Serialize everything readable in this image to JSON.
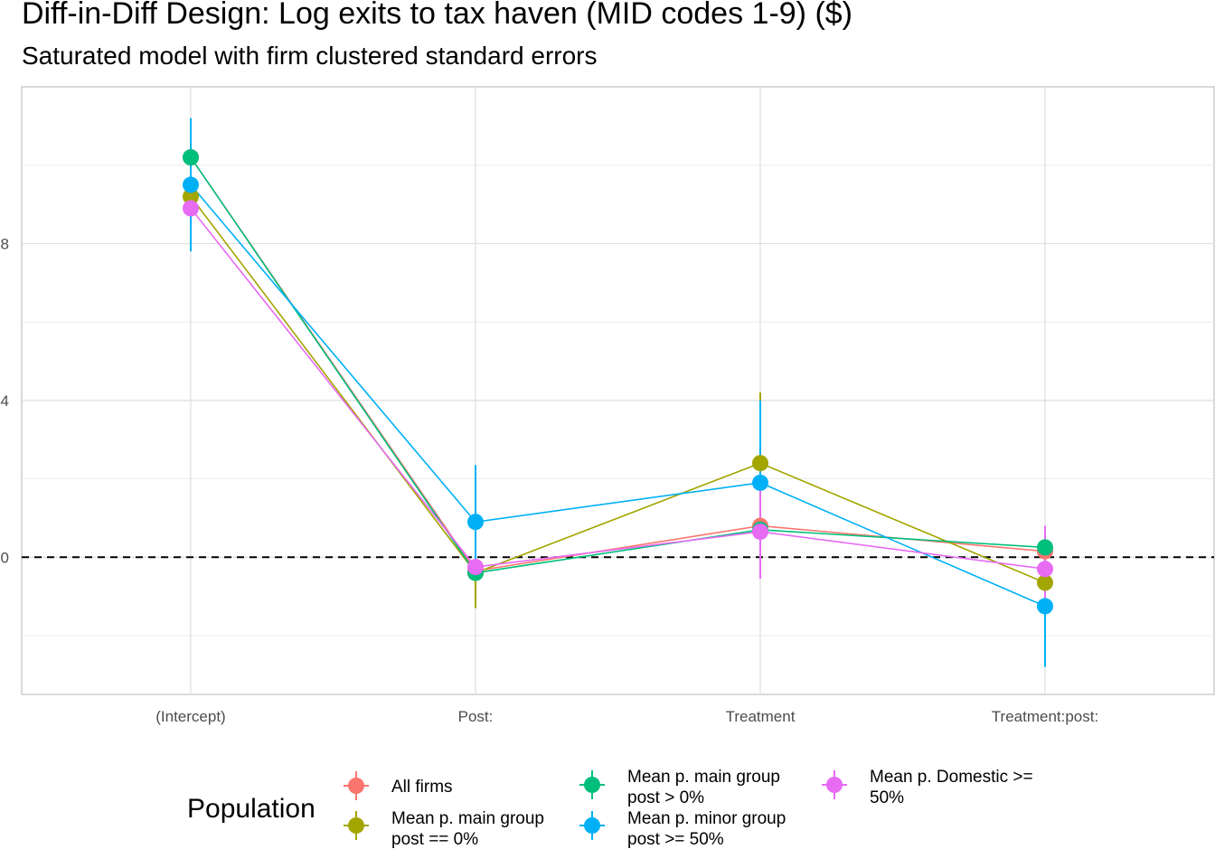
{
  "title": "Diff-in-Diff Design: Log exits to tax haven (MID codes 1-9)  ($)",
  "subtitle": "Saturated model with firm clustered standard errors",
  "chart_data": {
    "type": "scatter",
    "title": "Diff-in-Diff Design: Log exits to tax haven (MID codes 1-9)  ($)",
    "subtitle": "Saturated model with firm clustered standard errors",
    "xlabel": "",
    "ylabel": "",
    "categories": [
      "(Intercept)",
      "Post:",
      "Treatment",
      "Treatment:post:"
    ],
    "y_ticks": [
      "0",
      "4",
      "8"
    ],
    "ylim": [
      -3.5,
      12
    ],
    "grid": true,
    "reference_line": {
      "y": 0,
      "style": "dashed"
    },
    "legend": {
      "title": "Population",
      "placement": "bottom"
    },
    "series": [
      {
        "name": "All firms",
        "color": "#F8766D",
        "values": [
          10.2,
          -0.35,
          0.8,
          0.15
        ],
        "lower": [
          10.2,
          -0.35,
          0.8,
          0.15
        ],
        "upper": [
          10.2,
          -0.35,
          0.8,
          0.15
        ]
      },
      {
        "name": "Mean p. main group post == 0%",
        "color": "#A3A500",
        "values": [
          9.2,
          -0.4,
          2.4,
          -0.65
        ],
        "lower": [
          9.2,
          -1.3,
          0.6,
          -0.65
        ],
        "upper": [
          9.2,
          0.5,
          4.2,
          -0.65
        ]
      },
      {
        "name": "Mean p. main group post > 0%",
        "color": "#00BF7D",
        "values": [
          10.2,
          -0.4,
          0.7,
          0.25
        ],
        "lower": [
          10.2,
          -0.4,
          0.7,
          0.25
        ],
        "upper": [
          10.2,
          -0.4,
          0.7,
          0.25
        ]
      },
      {
        "name": "Mean p. minor group post >= 50%",
        "color": "#00B0F6",
        "values": [
          9.5,
          0.9,
          1.9,
          -1.25
        ],
        "lower": [
          7.8,
          -0.5,
          -0.2,
          -2.8
        ],
        "upper": [
          11.2,
          2.35,
          4.0,
          0.3
        ]
      },
      {
        "name": "Mean p. Domestic >= 50%",
        "color": "#E76BF3",
        "values": [
          8.9,
          -0.25,
          0.65,
          -0.3
        ],
        "lower": [
          8.9,
          -0.25,
          -0.55,
          -1.1
        ],
        "upper": [
          8.9,
          -0.25,
          1.85,
          0.8
        ]
      }
    ]
  },
  "legend_items": [
    {
      "lines": [
        "All firms"
      ]
    },
    {
      "lines": [
        "Mean p. main group",
        "post == 0%"
      ]
    },
    {
      "lines": [
        "Mean p. main group",
        "post > 0%"
      ]
    },
    {
      "lines": [
        "Mean p. minor group",
        "post >= 50%"
      ]
    },
    {
      "lines": [
        "Mean p. Domestic >=",
        "50%"
      ]
    }
  ]
}
